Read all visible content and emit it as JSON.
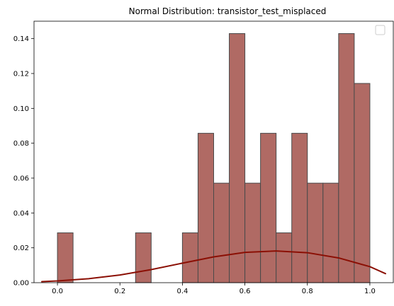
{
  "chart_data": {
    "type": "bar",
    "title": "Normal Distribution: transistor_test_misplaced",
    "xlabel": "",
    "ylabel": "",
    "xlim": [
      -0.075,
      1.075
    ],
    "ylim": [
      0,
      0.15
    ],
    "xticks": [
      0.0,
      0.2,
      0.4,
      0.6,
      0.8,
      1.0
    ],
    "xtick_labels": [
      "0.0",
      "0.2",
      "0.4",
      "0.6",
      "0.8",
      "1.0"
    ],
    "yticks": [
      0.0,
      0.02,
      0.04,
      0.06,
      0.08,
      0.1,
      0.12,
      0.14
    ],
    "ytick_labels": [
      "0.00",
      "0.02",
      "0.04",
      "0.06",
      "0.08",
      "0.10",
      "0.12",
      "0.14"
    ],
    "grid": false,
    "legend": {
      "placement": "top-right",
      "entries": []
    },
    "histogram": {
      "color": "#b06a64",
      "edge_color": "#4a4a4a",
      "bins": [
        {
          "x0": 0.0,
          "x1": 0.05,
          "value": 0.0286
        },
        {
          "x0": 0.05,
          "x1": 0.1,
          "value": 0.0
        },
        {
          "x0": 0.1,
          "x1": 0.15,
          "value": 0.0
        },
        {
          "x0": 0.15,
          "x1": 0.2,
          "value": 0.0
        },
        {
          "x0": 0.2,
          "x1": 0.25,
          "value": 0.0
        },
        {
          "x0": 0.25,
          "x1": 0.3,
          "value": 0.0286
        },
        {
          "x0": 0.3,
          "x1": 0.35,
          "value": 0.0
        },
        {
          "x0": 0.35,
          "x1": 0.4,
          "value": 0.0
        },
        {
          "x0": 0.4,
          "x1": 0.45,
          "value": 0.0286
        },
        {
          "x0": 0.45,
          "x1": 0.5,
          "value": 0.0857
        },
        {
          "x0": 0.5,
          "x1": 0.55,
          "value": 0.0571
        },
        {
          "x0": 0.55,
          "x1": 0.6,
          "value": 0.1429
        },
        {
          "x0": 0.6,
          "x1": 0.65,
          "value": 0.0571
        },
        {
          "x0": 0.65,
          "x1": 0.7,
          "value": 0.0857
        },
        {
          "x0": 0.7,
          "x1": 0.75,
          "value": 0.0286
        },
        {
          "x0": 0.75,
          "x1": 0.8,
          "value": 0.0857
        },
        {
          "x0": 0.8,
          "x1": 0.85,
          "value": 0.0571
        },
        {
          "x0": 0.85,
          "x1": 0.9,
          "value": 0.0571
        },
        {
          "x0": 0.9,
          "x1": 0.95,
          "value": 0.1429
        },
        {
          "x0": 0.95,
          "x1": 1.0,
          "value": 0.1143
        }
      ]
    },
    "curve": {
      "color": "#8b0f04",
      "points": [
        [
          -0.05,
          0.0006
        ],
        [
          0.0,
          0.001
        ],
        [
          0.1,
          0.0023
        ],
        [
          0.2,
          0.0044
        ],
        [
          0.3,
          0.0075
        ],
        [
          0.4,
          0.0112
        ],
        [
          0.5,
          0.0148
        ],
        [
          0.6,
          0.0174
        ],
        [
          0.7,
          0.0182
        ],
        [
          0.8,
          0.0172
        ],
        [
          0.9,
          0.0142
        ],
        [
          1.0,
          0.0092
        ],
        [
          1.05,
          0.0052
        ]
      ]
    }
  }
}
